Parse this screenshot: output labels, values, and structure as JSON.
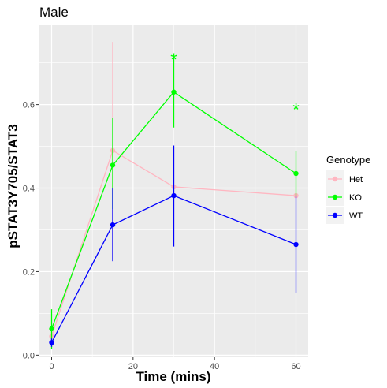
{
  "chart_data": {
    "type": "line",
    "title": "Male",
    "xlabel": "Time (mins)",
    "ylabel": "pSTAT3Y705/STAT3",
    "x": [
      0,
      15,
      30,
      60
    ],
    "x_ticks": [
      0,
      20,
      40,
      60
    ],
    "x_tick_labels": [
      "0",
      "20",
      "40",
      "60"
    ],
    "y_ticks": [
      0.0,
      0.2,
      0.4,
      0.6
    ],
    "y_tick_labels": [
      "0.0",
      "0.2",
      "0.4",
      "0.6"
    ],
    "xlim": [
      -3,
      63
    ],
    "ylim": [
      -0.005,
      0.79
    ],
    "grid": true,
    "legend": {
      "title": "Genotype",
      "position": "right"
    },
    "series": [
      {
        "name": "Het",
        "color": "#ffb6c1",
        "values": [
          0.045,
          0.49,
          0.403,
          0.382
        ],
        "err_low": [
          0.03,
          0.23,
          0.403,
          0.382
        ],
        "err_high": [
          0.07,
          0.75,
          0.403,
          0.382
        ]
      },
      {
        "name": "KO",
        "color": "#00ff00",
        "values": [
          0.063,
          0.455,
          0.63,
          0.435
        ],
        "err_low": [
          0.015,
          0.35,
          0.545,
          0.38
        ],
        "err_high": [
          0.11,
          0.568,
          0.715,
          0.488
        ]
      },
      {
        "name": "WT",
        "color": "#0000ff",
        "values": [
          0.03,
          0.312,
          0.382,
          0.265
        ],
        "err_low": [
          0.02,
          0.225,
          0.26,
          0.15
        ],
        "err_high": [
          0.04,
          0.4,
          0.502,
          0.38
        ]
      }
    ],
    "annotations": [
      {
        "text": "*",
        "x": 30,
        "y": 0.72,
        "color": "#00ff00"
      },
      {
        "text": "*",
        "x": 60,
        "y": 0.6,
        "color": "#00ff00"
      }
    ]
  }
}
